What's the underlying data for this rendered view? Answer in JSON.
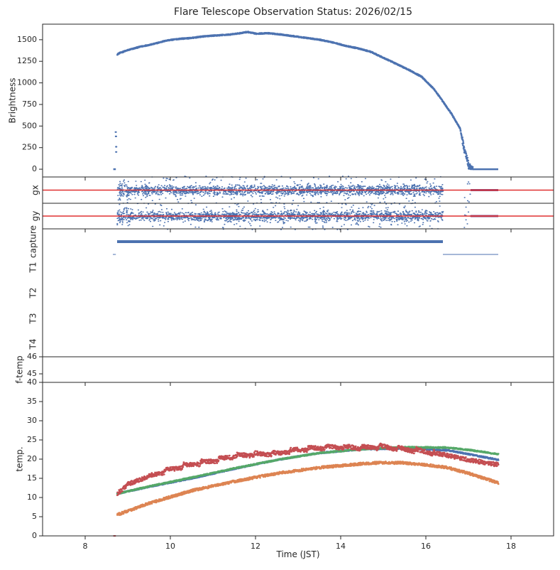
{
  "chart_data": {
    "type": "scatter",
    "title": "Flare Telescope Observation Status: 2026/02/15",
    "xlabel": "Time (JST)",
    "xlim": [
      7,
      19
    ],
    "xticks": [
      8,
      10,
      12,
      14,
      16,
      18
    ],
    "colors": {
      "blue": "#4c72b0",
      "red": "#c44e52",
      "green": "#55a868",
      "orange": "#dd8452",
      "refline": "#e03030"
    },
    "panels": {
      "brightness": {
        "ylabel": "Brightness",
        "ylim": [
          -90,
          1680
        ],
        "yticks": [
          0,
          250,
          500,
          750,
          1000,
          1250,
          1500
        ],
        "series": {
          "name": "brightness",
          "x": [
            8.7,
            8.72,
            8.75,
            8.8,
            9.0,
            9.3,
            9.6,
            9.9,
            10.2,
            10.5,
            10.8,
            11.1,
            11.4,
            11.7,
            11.8,
            12.0,
            12.3,
            12.6,
            12.9,
            13.2,
            13.5,
            13.8,
            14.1,
            14.4,
            14.7,
            15.0,
            15.3,
            15.6,
            15.9,
            16.2,
            16.4,
            16.6,
            16.8,
            16.9,
            16.95,
            17.0,
            17.1,
            17.7
          ],
          "y": [
            0,
            0,
            1330,
            1345,
            1380,
            1420,
            1450,
            1490,
            1510,
            1520,
            1540,
            1550,
            1560,
            1580,
            1590,
            1570,
            1575,
            1560,
            1540,
            1520,
            1500,
            1470,
            1430,
            1400,
            1360,
            1290,
            1220,
            1150,
            1070,
            920,
            780,
            640,
            470,
            220,
            150,
            40,
            0,
            0
          ]
        }
      },
      "gx": {
        "ylabel": "gx",
        "refline": 0,
        "ylim": [
          -1,
          1
        ],
        "scatter_x_range": [
          8.75,
          16.4
        ],
        "late_x_range": [
          17.05,
          17.7
        ]
      },
      "gy": {
        "ylabel": "gy",
        "refline": 0,
        "ylim": [
          -1,
          1
        ],
        "scatter_x_range": [
          8.75,
          16.4
        ],
        "late_x_range": [
          17.05,
          17.7
        ]
      },
      "status": {
        "ylabels": [
          "capture",
          "T1",
          "T2",
          "T3",
          "T4"
        ],
        "capture_segments": [
          [
            8.75,
            16.4
          ]
        ],
        "capture_thin_segments": [
          [
            8.65,
            8.72
          ],
          [
            16.4,
            17.7
          ]
        ]
      },
      "ftemp": {
        "ylabel": "f-temp",
        "ylim": [
          44.5,
          46
        ],
        "yticks": [
          45,
          46
        ]
      },
      "temp": {
        "ylabel": "temp.",
        "ylim": [
          0,
          40
        ],
        "yticks": [
          0,
          5,
          10,
          15,
          20,
          25,
          30,
          35,
          40
        ],
        "series": [
          {
            "name": "blue",
            "x": [
              8.75,
              9.5,
              10.5,
              11.5,
              12.5,
              13.5,
              14.5,
              15.5,
              16.5,
              17.0,
              17.7
            ],
            "y": [
              11.0,
              12.8,
              15.0,
              17.5,
              19.8,
              21.6,
              22.6,
              22.8,
              22.3,
              21.3,
              19.8
            ]
          },
          {
            "name": "green",
            "x": [
              8.75,
              9.5,
              10.5,
              11.5,
              12.5,
              13.5,
              14.5,
              15.5,
              16.5,
              17.0,
              17.7
            ],
            "y": [
              11.0,
              12.9,
              15.2,
              17.6,
              19.8,
              21.6,
              22.6,
              23.1,
              23.0,
              22.4,
              21.3
            ]
          },
          {
            "name": "red",
            "x": [
              8.75,
              9.0,
              9.5,
              10.0,
              10.5,
              11.0,
              11.5,
              12.0,
              12.5,
              13.0,
              13.5,
              14.0,
              14.5,
              15.0,
              15.5,
              16.0,
              16.5,
              17.0,
              17.7
            ],
            "y": [
              11.0,
              13.5,
              15.5,
              17.3,
              18.7,
              19.6,
              20.8,
              21.3,
              21.5,
              22.5,
              23.0,
              23.2,
              23.0,
              23.2,
              22.6,
              22.0,
              21.0,
              19.8,
              18.5
            ]
          },
          {
            "name": "orange",
            "x": [
              8.75,
              9.5,
              10.5,
              11.5,
              12.5,
              13.5,
              14.5,
              15.0,
              15.5,
              16.0,
              16.5,
              17.0,
              17.7
            ],
            "y": [
              5.5,
              8.5,
              11.8,
              14.2,
              16.3,
              17.8,
              18.8,
              19.1,
              19.0,
              18.5,
              17.8,
              16.3,
              13.8
            ]
          }
        ]
      }
    }
  }
}
